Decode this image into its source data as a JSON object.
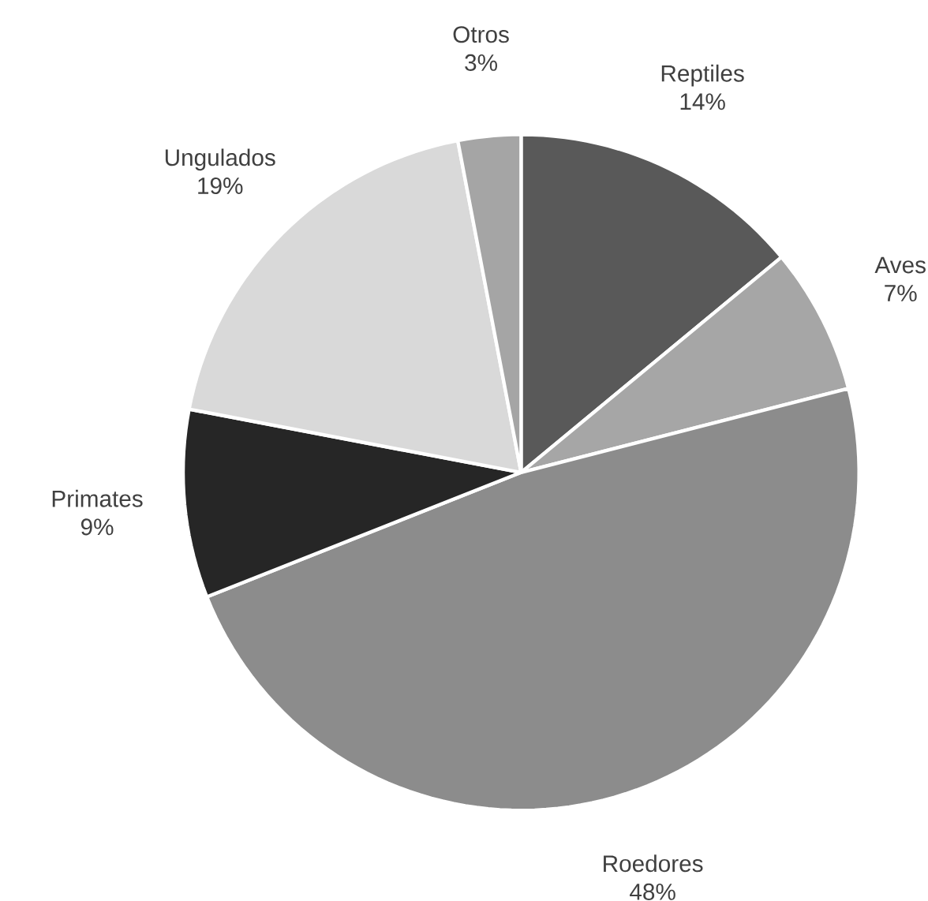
{
  "chart_data": {
    "type": "pie",
    "categories": [
      "Reptiles",
      "Aves",
      "Roedores",
      "Primates",
      "Ungulados",
      "Otros"
    ],
    "values": [
      14,
      7,
      48,
      9,
      19,
      3
    ],
    "value_labels": [
      "14%",
      "7%",
      "48%",
      "9%",
      "19%",
      "3%"
    ],
    "colors": [
      "#595959",
      "#a6a6a6",
      "#8c8c8c",
      "#262626",
      "#d9d9d9",
      "#a5a5a5"
    ]
  }
}
